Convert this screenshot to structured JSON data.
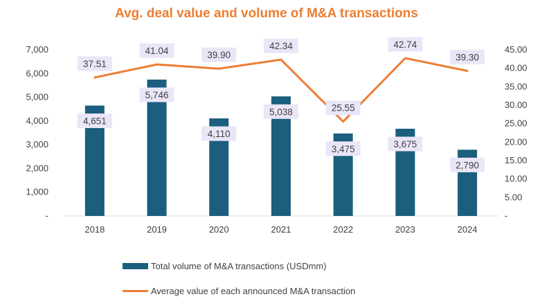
{
  "colors": {
    "title": "#ED7D31",
    "bar": "#1B5E7E",
    "line": "#ED7D31",
    "label_bg": "#EAE6F8",
    "axis_text": "#404040",
    "axis_line": "#D9D9D9"
  },
  "chart_data": {
    "type": "bar+line",
    "title": "Avg. deal value and volume of M&A transactions",
    "categories": [
      "2018",
      "2019",
      "2020",
      "2021",
      "2022",
      "2023",
      "2024"
    ],
    "series": [
      {
        "name": "Total volume of M&A transactions (USDmm)",
        "type": "bar",
        "axis": "left",
        "values": [
          4651,
          5746,
          4110,
          5038,
          3475,
          3675,
          2790
        ],
        "labels": [
          "4,651",
          "5,746",
          "4,110",
          "5,038",
          "3,475",
          "3,675",
          "2,790"
        ]
      },
      {
        "name": "Average value of each announced M&A transaction",
        "type": "line",
        "axis": "right",
        "values": [
          37.51,
          41.04,
          39.9,
          42.34,
          25.55,
          42.74,
          39.3
        ],
        "labels": [
          "37.51",
          "41.04",
          "39.90",
          "42.34",
          "25.55",
          "42.74",
          "39.30"
        ]
      }
    ],
    "y_left": {
      "range": [
        0,
        7000
      ],
      "ticks": [
        0,
        1000,
        2000,
        3000,
        4000,
        5000,
        6000,
        7000
      ],
      "tick_labels": [
        "-",
        "1,000",
        "2,000",
        "3,000",
        "4,000",
        "5,000",
        "6,000",
        "7,000"
      ]
    },
    "y_right": {
      "range": [
        0,
        45
      ],
      "ticks": [
        0,
        5,
        10,
        15,
        20,
        25,
        30,
        35,
        40,
        45
      ],
      "tick_labels": [
        "-",
        "5.00",
        "10.00",
        "15.00",
        "20.00",
        "25.00",
        "30.00",
        "35.00",
        "40.00",
        "45.00"
      ]
    },
    "legend_position": "bottom-center",
    "grid": false
  },
  "legend": {
    "bar_label": "Total volume of M&A transactions (USDmm)",
    "line_label": "Average value of each announced M&A transaction"
  }
}
